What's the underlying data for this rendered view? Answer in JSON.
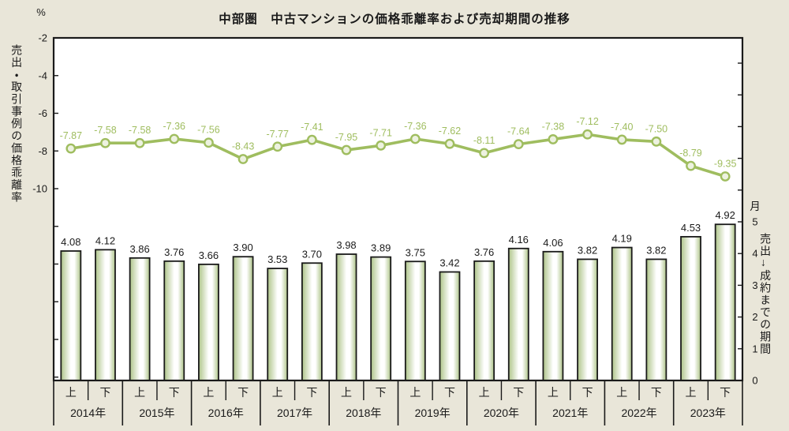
{
  "title": "中部圏　中古マンションの価格乖離率および売却期間の推移",
  "colors": {
    "background": "#e9e6d9",
    "plot_background": "#ffffff",
    "frame": "#1a1a1a",
    "text": "#1a1a1a",
    "line": "#9fbd5f",
    "marker_fill": "#edf2e0",
    "bar_edge": "#aec489",
    "bar_center": "#ffffff"
  },
  "chart_data": {
    "type": "combo",
    "title": "中部圏　中古マンションの価格乖離率および売却期間の推移",
    "x": {
      "years": [
        "2014年",
        "2015年",
        "2016年",
        "2017年",
        "2018年",
        "2019年",
        "2020年",
        "2021年",
        "2022年",
        "2023年"
      ],
      "half_labels": [
        "上",
        "下"
      ]
    },
    "series": [
      {
        "name": "売出・取引事例の価格乖離率",
        "type": "line",
        "axis": "left",
        "unit": "%",
        "values": [
          -7.87,
          -7.58,
          -7.58,
          -7.36,
          -7.56,
          -8.43,
          -7.77,
          -7.41,
          -7.95,
          -7.71,
          -7.36,
          -7.62,
          -8.11,
          -7.64,
          -7.38,
          -7.12,
          -7.4,
          -7.5,
          -8.79,
          -9.35
        ]
      },
      {
        "name": "売出→成約までの期間",
        "type": "bar",
        "axis": "right",
        "unit": "月",
        "values": [
          4.08,
          4.12,
          3.86,
          3.76,
          3.66,
          3.9,
          3.53,
          3.7,
          3.98,
          3.89,
          3.75,
          3.42,
          3.76,
          4.16,
          4.06,
          3.82,
          4.19,
          3.82,
          4.53,
          4.92
        ]
      }
    ],
    "axes": {
      "left": {
        "unit": "%",
        "title": "売出・取引事例の価格乖離率",
        "ticks": [
          -2,
          -4,
          -6,
          -8,
          -10
        ],
        "range": [
          -10,
          -2
        ],
        "grid": false
      },
      "right": {
        "unit": "月",
        "title": "売出→成約までの期間",
        "ticks": [
          0,
          1,
          2,
          3,
          4,
          5
        ],
        "range": [
          0,
          5
        ],
        "grid": false
      }
    },
    "legend": "none",
    "value_labels": true
  }
}
